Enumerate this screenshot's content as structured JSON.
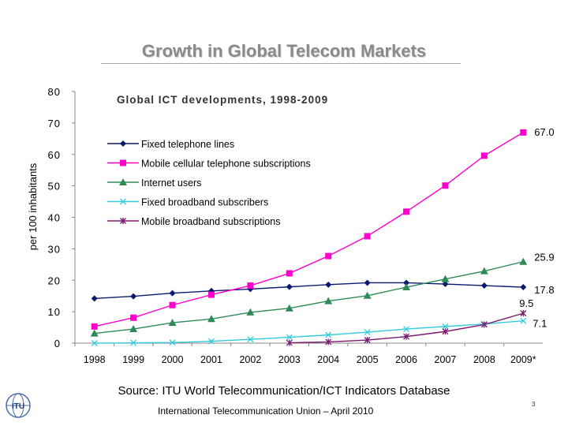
{
  "slide": {
    "title": "Growth in Global Telecom Markets",
    "source": "Source: ITU World Telecommunication/ICT Indicators Database",
    "footer": "International Telecommunication Union – April 2010",
    "page_number": "3",
    "logo_text": "ITU",
    "logo_icon": "itu-globe-logo"
  },
  "chart_data": {
    "type": "line",
    "title": "Global ICT developments, 1998-2009",
    "ylabel": "per 100 inhabitants",
    "xlabel": "",
    "categories": [
      "1998",
      "1999",
      "2000",
      "2001",
      "2002",
      "2003",
      "2004",
      "2005",
      "2006",
      "2007",
      "2008",
      "2009*"
    ],
    "ylim": [
      0,
      80
    ],
    "yticks": [
      "0",
      "10",
      "20",
      "30",
      "40",
      "50",
      "60",
      "70",
      "80"
    ],
    "grid": false,
    "legend_position": "top-left",
    "series": [
      {
        "name": "Fixed telephone lines",
        "color": "#0a1a6e",
        "marker": "diamond",
        "values": [
          14.2,
          14.9,
          15.9,
          16.6,
          17.2,
          17.9,
          18.6,
          19.2,
          19.2,
          18.8,
          18.3,
          17.8
        ],
        "end_label": "17.8"
      },
      {
        "name": "Mobile cellular telephone subscriptions",
        "color": "#ff00cc",
        "marker": "square",
        "values": [
          5.3,
          8.1,
          12.1,
          15.4,
          18.3,
          22.2,
          27.7,
          34.0,
          41.8,
          50.1,
          59.6,
          67.0
        ],
        "end_label": "67.0"
      },
      {
        "name": "Internet users",
        "color": "#2e8b57",
        "marker": "triangle",
        "values": [
          3.1,
          4.5,
          6.5,
          7.7,
          9.8,
          11.1,
          13.4,
          15.1,
          17.8,
          20.4,
          22.9,
          25.9
        ],
        "end_label": "25.9"
      },
      {
        "name": "Fixed broadband subscribers",
        "color": "#33ccdd",
        "marker": "asterisk",
        "values": [
          0.0,
          0.1,
          0.2,
          0.6,
          1.2,
          1.9,
          2.6,
          3.5,
          4.5,
          5.3,
          6.1,
          7.1
        ],
        "end_label": "7.1"
      },
      {
        "name": "Mobile broadband subscriptions",
        "color": "#7a1a6e",
        "marker": "star",
        "values": [
          null,
          null,
          null,
          null,
          null,
          0.1,
          0.4,
          1.0,
          2.1,
          3.7,
          5.9,
          9.5
        ],
        "end_label": "9.5"
      }
    ]
  }
}
